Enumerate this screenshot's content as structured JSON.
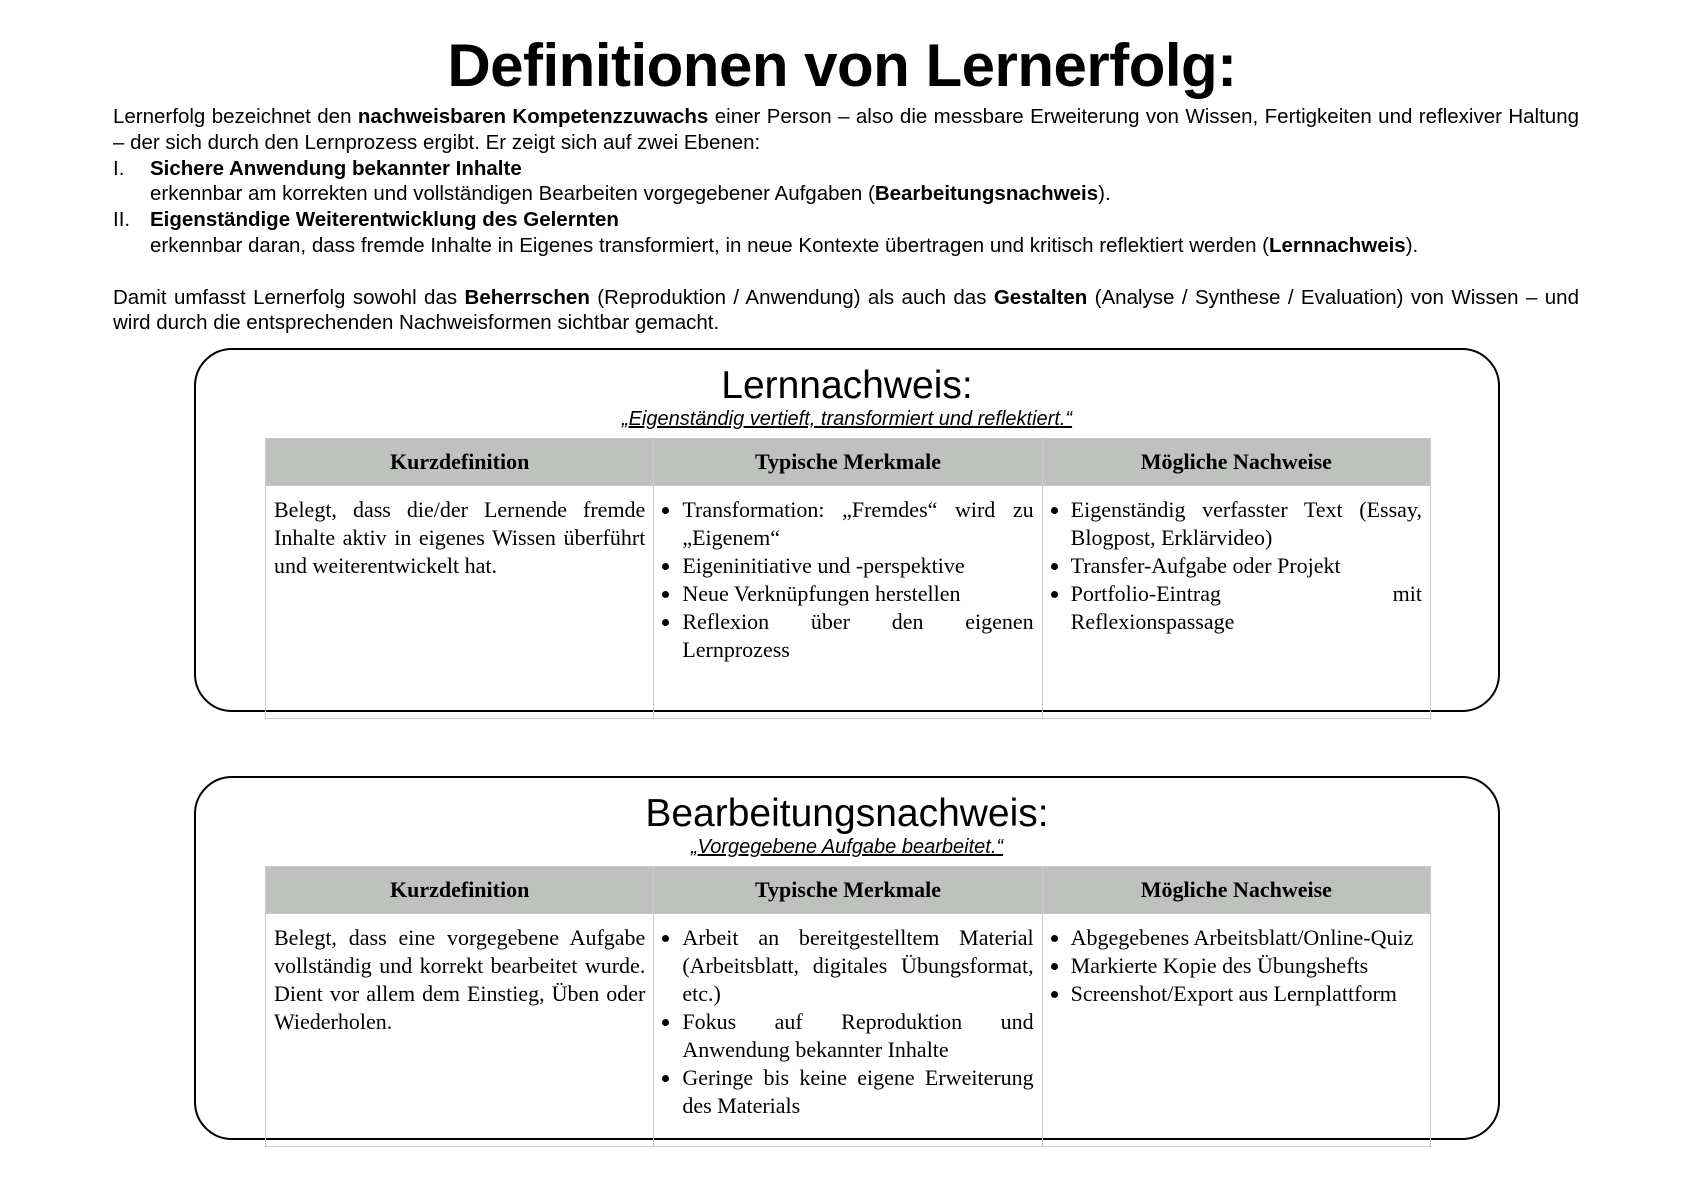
{
  "title": "Definitionen von Lernerfolg:",
  "intro": {
    "p1_a": "Lernerfolg bezeichnet den ",
    "p1_b": "nachweisbaren Kompetenzzuwachs",
    "p1_c": " einer Person – also die messbare Erweiterung von Wissen, Fertigkeiten und reflexiver Haltung – der sich durch den Lernprozess ergibt. Er zeigt sich auf zwei Ebenen:",
    "levels": [
      {
        "num": "I.",
        "title": "Sichere Anwendung bekannter Inhalte",
        "desc_a": "erkennbar am korrekten und vollständigen Bearbeiten vorgegebener Aufgaben (",
        "desc_b": "Bearbeitungsnachweis",
        "desc_c": ")."
      },
      {
        "num": "II.",
        "title": "Eigenständige Weiterentwicklung des Gelernten",
        "desc_a": "erkennbar daran, dass fremde Inhalte in Eigenes transformiert, in neue Kontexte übertragen und kritisch reflektiert werden (",
        "desc_b": "Lernnachweis",
        "desc_c": ")."
      }
    ],
    "p2_a": "Damit umfasst Lernerfolg sowohl das ",
    "p2_b": "Beherrschen",
    "p2_c": " (Reproduktion / Anwendung) als auch das ",
    "p2_d": "Gestalten",
    "p2_e": " (Analyse / Synthese / Evaluation) von Wissen – und wird durch die entsprechenden Nachweisformen sichtbar gemacht."
  },
  "headers": [
    "Kurzdefinition",
    "Typische Merkmale",
    "Mögliche Nachweise"
  ],
  "boxes": [
    {
      "title": "Lernnachweis:",
      "motto": "„Eigenständig vertieft, transformiert und reflektiert.“",
      "definition": "Belegt, dass die/der Lernende fremde Inhalte aktiv in eigenes Wissen überführt und weiterentwickelt hat.",
      "features": [
        "Transformation: „Fremdes“ wird zu „Eigenem“",
        "Eigeninitiative und -perspektive",
        "Neue Verknüpfungen herstellen",
        "Reflexion über den eigenen Lernprozess"
      ],
      "evidence": [
        "Eigenständig verfasster Text (Essay, Blogpost, Erklärvideo)",
        "Transfer-Aufgabe oder Projekt",
        "Portfolio-Eintrag mit Reflexionspassage"
      ]
    },
    {
      "title": "Bearbeitungsnachweis:",
      "motto": "„Vorgegebene Aufgabe bearbeitet.“",
      "definition": "Belegt, dass eine vorgegebene Aufgabe vollständig und korrekt bearbeitet wurde. Dient vor allem dem Einstieg, Üben oder Wiederholen.",
      "features": [
        "Arbeit an bereitgestelltem Material (Arbeitsblatt, digitales Übungsformat, etc.)",
        "Fokus auf Reproduktion und Anwendung bekannter Inhalte",
        "Geringe bis keine eigene Erweiterung des Materials"
      ],
      "evidence": [
        "Abgegebenes Arbeitsblatt/Online-Quiz",
        "Markierte Kopie des Übungshefts",
        "Screenshot/Export aus Lernplattform"
      ]
    }
  ]
}
